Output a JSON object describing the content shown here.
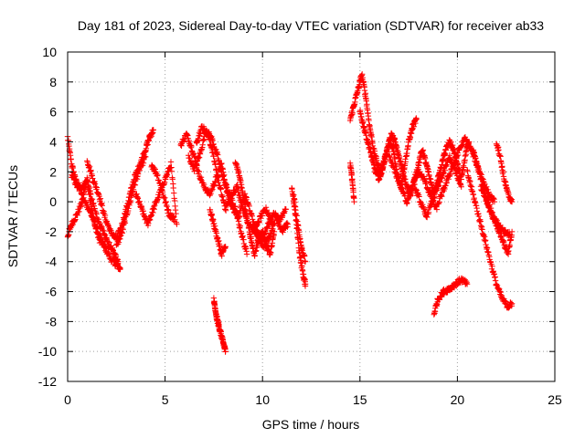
{
  "chart_data": {
    "type": "scatter",
    "title": "Day 181 of 2023, Sidereal Day-to-day VTEC variation (SDTVAR) for receiver ab33",
    "xlabel": "GPS time / hours",
    "ylabel": "SDTVAR / TECUs",
    "xlim": [
      0,
      25
    ],
    "ylim": [
      -12,
      10
    ],
    "xticks": [
      0,
      5,
      10,
      15,
      20,
      25
    ],
    "yticks": [
      -12,
      -10,
      -8,
      -6,
      -4,
      -2,
      0,
      2,
      4,
      6,
      8,
      10
    ],
    "grid": true,
    "marker": "+",
    "color": "#ff0000",
    "series": [
      {
        "name": "SDTVAR",
        "tracks": [
          {
            "x": [
              0.0,
              0.2,
              0.4,
              0.7,
              1.0,
              1.3,
              1.6,
              1.9,
              2.2,
              2.5,
              2.7
            ],
            "y": [
              4.3,
              2.5,
              1.5,
              0.8,
              1.5,
              -1.0,
              -2.5,
              -3.0,
              -3.8,
              -4.2,
              -4.5
            ]
          },
          {
            "x": [
              0.0,
              0.2,
              0.5,
              0.8,
              1.1,
              1.4,
              1.7,
              2.0
            ],
            "y": [
              -2.3,
              -1.5,
              -0.8,
              0.2,
              -0.5,
              -1.5,
              -2.5,
              -3.3
            ]
          },
          {
            "x": [
              0.2,
              0.5,
              0.8,
              1.0,
              1.2,
              1.5,
              1.8,
              2.1,
              2.4,
              2.6
            ],
            "y": [
              1.8,
              1.0,
              0.5,
              1.5,
              0.3,
              -1.0,
              -2.0,
              -2.8,
              -3.5,
              -4.0
            ]
          },
          {
            "x": [
              1.0,
              1.3,
              1.6,
              1.9,
              2.2,
              2.5,
              2.8,
              3.1,
              3.4,
              3.7,
              4.0,
              4.2,
              4.4
            ],
            "y": [
              2.8,
              1.5,
              0.5,
              -1.0,
              -2.0,
              -2.5,
              -1.5,
              0.0,
              1.5,
              2.5,
              3.5,
              4.3,
              4.8
            ]
          },
          {
            "x": [
              2.5,
              2.8,
              3.1,
              3.4,
              3.7,
              4.0
            ],
            "y": [
              -3.0,
              -2.0,
              -0.5,
              1.0,
              2.2,
              3.0
            ]
          },
          {
            "x": [
              3.5,
              3.8,
              4.1,
              4.4,
              4.7,
              5.0,
              5.3,
              5.6
            ],
            "y": [
              0.5,
              -0.5,
              -1.5,
              -0.5,
              0.5,
              1.5,
              2.5,
              -1.5
            ]
          },
          {
            "x": [
              4.3,
              4.6,
              4.9,
              5.2,
              5.5
            ],
            "y": [
              2.5,
              1.8,
              0.5,
              -0.8,
              -1.2
            ]
          },
          {
            "x": [
              5.8,
              6.1,
              6.4,
              6.7,
              7.0,
              7.3,
              7.6,
              7.9,
              8.2,
              8.5,
              8.8,
              9.1,
              9.4,
              9.7,
              10.0,
              10.3,
              10.6,
              10.9,
              11.2
            ],
            "y": [
              3.8,
              4.5,
              3.5,
              2.0,
              1.0,
              0.5,
              1.5,
              2.5,
              0.5,
              -0.5,
              -1.0,
              0.5,
              -0.8,
              -2.0,
              -2.5,
              -1.5,
              -0.8,
              -1.2,
              -0.5
            ]
          },
          {
            "x": [
              6.2,
              6.5,
              6.8,
              7.1,
              7.4,
              7.7,
              8.0,
              8.3,
              8.6,
              8.9,
              9.2
            ],
            "y": [
              3.0,
              2.2,
              3.2,
              4.8,
              4.2,
              3.0,
              1.5,
              0.5,
              -0.5,
              -2.0,
              -3.5
            ]
          },
          {
            "x": [
              6.6,
              6.9,
              7.2,
              7.5,
              7.8,
              8.1,
              8.4,
              8.7,
              9.0,
              9.3,
              9.6,
              9.9,
              10.2,
              10.5
            ],
            "y": [
              4.0,
              5.0,
              4.5,
              3.0,
              1.0,
              -0.5,
              0.5,
              1.0,
              -0.5,
              -1.5,
              -2.0,
              -1.0,
              -0.5,
              -1.5
            ]
          },
          {
            "x": [
              7.3,
              7.5,
              7.7,
              7.9,
              8.1
            ],
            "y": [
              -0.5,
              -1.5,
              -2.5,
              -3.5,
              -3.0
            ]
          },
          {
            "x": [
              7.5,
              7.6,
              7.7,
              7.8,
              7.9,
              8.0,
              8.1
            ],
            "y": [
              -6.5,
              -7.5,
              -8.0,
              -8.5,
              -9.0,
              -9.5,
              -10.0
            ]
          },
          {
            "x": [
              8.6,
              8.8,
              9.0,
              9.2,
              9.4,
              9.6,
              9.8,
              10.0,
              10.2,
              10.4,
              10.6
            ],
            "y": [
              2.8,
              1.8,
              0.5,
              -1.0,
              -2.5,
              -3.5,
              -2.5,
              -2.0,
              -3.0,
              -3.5,
              -2.0
            ]
          },
          {
            "x": [
              9.5,
              9.8,
              10.1,
              10.4,
              10.7,
              11.0,
              11.3
            ],
            "y": [
              -1.5,
              -2.5,
              -3.0,
              -2.2,
              -1.0,
              -2.0,
              -1.5
            ]
          },
          {
            "x": [
              11.5,
              11.7,
              11.9,
              12.1,
              12.2
            ],
            "y": [
              1.0,
              -1.0,
              -3.5,
              -5.0,
              -5.5
            ]
          },
          {
            "x": [
              11.6,
              11.8,
              12.0,
              12.2
            ],
            "y": [
              0.5,
              -1.5,
              -3.0,
              -4.0
            ]
          },
          {
            "x": [
              14.5,
              14.6,
              14.7
            ],
            "y": [
              2.5,
              1.5,
              0.0
            ]
          },
          {
            "x": [
              14.5,
              14.7,
              14.9,
              15.1,
              15.3,
              15.5,
              15.7,
              15.9,
              16.1,
              16.3,
              16.5,
              16.7,
              16.9,
              17.1,
              17.3,
              17.5,
              17.7,
              17.9
            ],
            "y": [
              5.5,
              6.5,
              7.5,
              8.5,
              7.0,
              5.0,
              3.5,
              2.5,
              2.0,
              3.0,
              4.0,
              3.5,
              2.0,
              1.0,
              2.5,
              4.0,
              5.0,
              5.5
            ]
          },
          {
            "x": [
              15.0,
              15.2,
              15.4,
              15.6,
              15.8,
              16.0,
              16.2,
              16.4,
              16.6,
              16.8,
              17.0,
              17.2,
              17.4,
              17.6,
              17.8,
              18.0,
              18.2,
              18.4,
              18.6,
              18.8,
              19.0,
              19.2,
              19.4,
              19.6,
              19.8,
              20.0,
              20.2,
              20.4,
              20.6
            ],
            "y": [
              6.0,
              5.0,
              4.0,
              3.0,
              2.0,
              1.5,
              2.5,
              3.5,
              4.5,
              4.0,
              3.0,
              2.0,
              1.0,
              0.5,
              1.5,
              2.5,
              3.5,
              2.5,
              1.5,
              0.5,
              1.5,
              2.5,
              3.5,
              4.0,
              3.5,
              2.5,
              1.5,
              3.0,
              4.0
            ]
          },
          {
            "x": [
              16.5,
              16.8,
              17.1,
              17.4,
              17.7,
              18.0,
              18.3,
              18.6,
              18.9,
              19.2,
              19.5,
              19.8,
              20.1,
              20.4,
              20.7,
              21.0,
              21.3,
              21.6,
              21.9
            ],
            "y": [
              3.0,
              2.0,
              1.0,
              0.0,
              1.0,
              2.0,
              1.5,
              0.5,
              -0.5,
              0.5,
              1.5,
              2.5,
              3.5,
              4.2,
              3.5,
              2.5,
              1.5,
              0.5,
              0.0
            ]
          },
          {
            "x": [
              17.8,
              18.1,
              18.4,
              18.7,
              19.0,
              19.3,
              19.6,
              19.9,
              20.2
            ],
            "y": [
              1.0,
              0.0,
              -1.0,
              0.0,
              1.0,
              2.0,
              3.0,
              2.0,
              1.0
            ]
          },
          {
            "x": [
              18.8,
              19.0,
              19.3,
              19.6,
              19.9,
              20.2,
              20.5
            ],
            "y": [
              -7.5,
              -6.5,
              -6.0,
              -5.8,
              -5.5,
              -5.2,
              -5.5
            ]
          },
          {
            "x": [
              20.5,
              20.8,
              21.1,
              21.4,
              21.7,
              22.0,
              22.3,
              22.6,
              22.8
            ],
            "y": [
              2.0,
              0.5,
              -1.0,
              -2.5,
              -4.0,
              -5.5,
              -6.5,
              -7.0,
              -6.8
            ]
          },
          {
            "x": [
              20.8,
              21.1,
              21.4,
              21.7,
              22.0,
              22.3,
              22.6,
              22.8
            ],
            "y": [
              3.5,
              2.0,
              0.5,
              -0.5,
              -1.5,
              -2.5,
              -3.5,
              -2.0
            ]
          },
          {
            "x": [
              21.2,
              21.5,
              21.8,
              22.1,
              22.4,
              22.7
            ],
            "y": [
              1.0,
              0.0,
              -1.0,
              -1.5,
              -2.0,
              -2.2
            ]
          },
          {
            "x": [
              22.0,
              22.2,
              22.4,
              22.6,
              22.8
            ],
            "y": [
              4.0,
              3.0,
              1.5,
              0.5,
              0.0
            ]
          }
        ]
      }
    ]
  }
}
